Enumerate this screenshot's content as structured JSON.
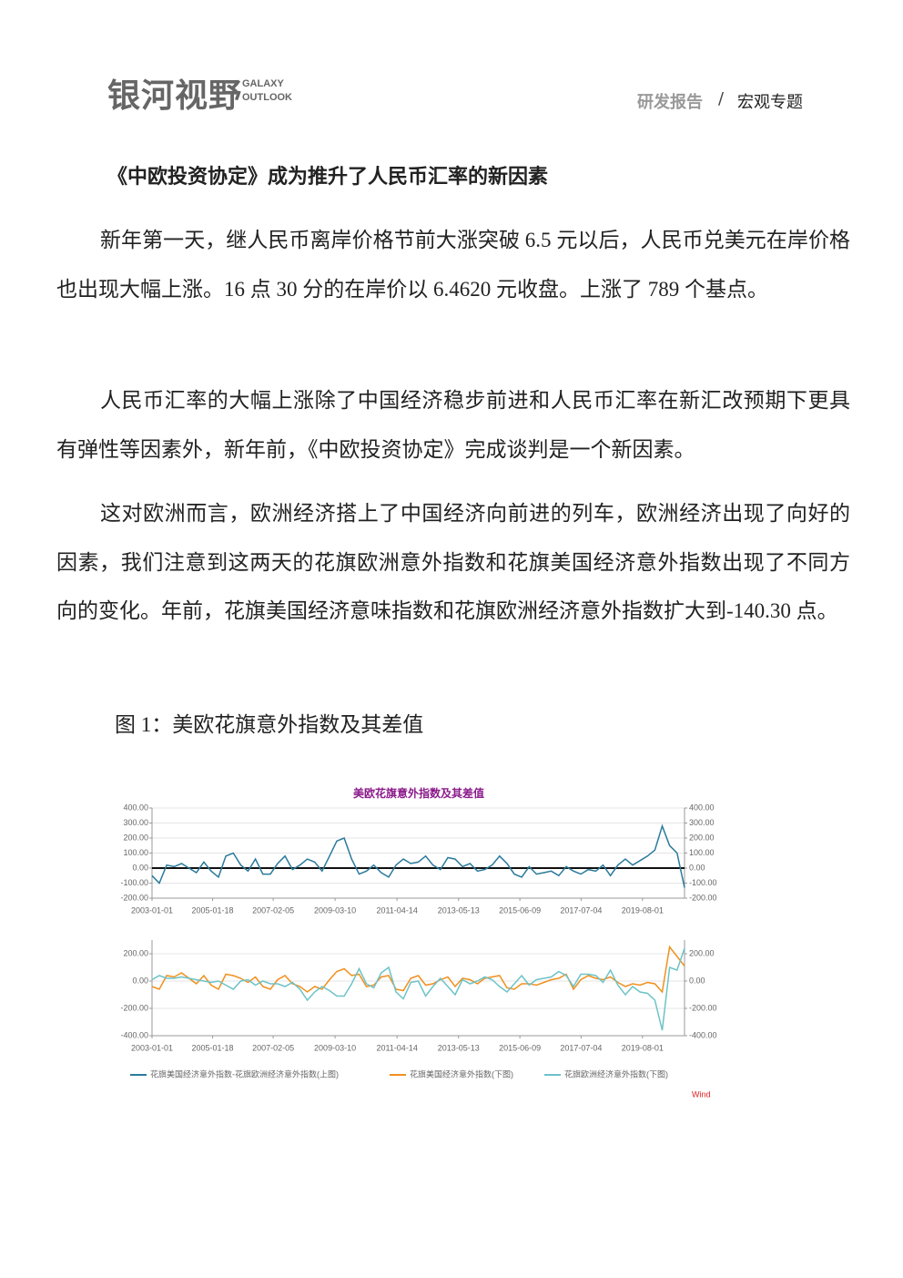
{
  "header": {
    "logo": "银河视野",
    "logo_en_1": "GALAXY",
    "logo_en_2": "OUTLOOK",
    "section": "研发报告",
    "separator": "/",
    "topic": "宏观专题"
  },
  "title": "《中欧投资协定》成为推升了人民币汇率的新因素",
  "paragraphs": [
    "新年第一天，继人民币离岸价格节前大涨突破 6.5 元以后，人民币兑美元在岸价格也出现大幅上涨。16 点 30 分的在岸价以 6.4620 元收盘。上涨了 789 个基点。",
    "人民币汇率的大幅上涨除了中国经济稳步前进和人民币汇率在新汇改预期下更具有弹性等因素外，新年前，《中欧投资协定》完成谈判是一个新因素。",
    "这对欧洲而言，欧洲经济搭上了中国经济向前进的列车，欧洲经济出现了向好的因素，我们注意到这两天的花旗欧洲意外指数和花旗美国经济意外指数出现了不同方向的变化。年前，花旗美国经济意味指数和花旗欧洲经济意外指数扩大到-140.30 点。"
  ],
  "figure": {
    "caption": "图 1：美欧花旗意外指数及其差值",
    "title": "美欧花旗意外指数及其差值",
    "source": "Wind"
  },
  "chart_data": [
    {
      "type": "line",
      "x": [
        "2003-01-01",
        "2003-04-01",
        "2003-07-01",
        "2003-10-01",
        "2004-01-01",
        "2004-04-01",
        "2004-07-01",
        "2004-10-01",
        "2005-01-01",
        "2005-04-01",
        "2005-07-01",
        "2005-10-01",
        "2006-01-01",
        "2006-04-01",
        "2006-07-01",
        "2006-10-01",
        "2007-01-01",
        "2007-04-01",
        "2007-07-01",
        "2007-10-01",
        "2008-01-01",
        "2008-04-01",
        "2008-07-01",
        "2008-10-01",
        "2009-01-01",
        "2009-04-01",
        "2009-07-01",
        "2009-10-01",
        "2010-01-01",
        "2010-04-01",
        "2010-07-01",
        "2010-10-01",
        "2011-01-01",
        "2011-04-01",
        "2011-07-01",
        "2011-10-01",
        "2012-01-01",
        "2012-04-01",
        "2012-07-01",
        "2012-10-01",
        "2013-01-01",
        "2013-04-01",
        "2013-07-01",
        "2013-10-01",
        "2014-01-01",
        "2014-04-01",
        "2014-07-01",
        "2014-10-01",
        "2015-01-01",
        "2015-04-01",
        "2015-07-01",
        "2015-10-01",
        "2016-01-01",
        "2016-04-01",
        "2016-07-01",
        "2016-10-01",
        "2017-01-01",
        "2017-04-01",
        "2017-07-01",
        "2017-10-01",
        "2018-01-01",
        "2018-04-01",
        "2018-07-01",
        "2018-10-01",
        "2019-01-01",
        "2019-04-01",
        "2019-07-01",
        "2019-10-01",
        "2020-01-01",
        "2020-04-01",
        "2020-07-01",
        "2020-10-01",
        "2021-01-01"
      ],
      "series": [
        {
          "name": "花旗美国经济意外指数-花旗欧洲经济意外指数(上图)",
          "color": "#2a7a9b",
          "values": [
            -50,
            -100,
            20,
            10,
            30,
            0,
            -30,
            40,
            -20,
            -60,
            80,
            100,
            20,
            -20,
            60,
            -40,
            -40,
            30,
            80,
            -10,
            20,
            60,
            40,
            -20,
            80,
            180,
            200,
            60,
            -40,
            -20,
            20,
            -30,
            -60,
            20,
            60,
            30,
            40,
            80,
            20,
            -10,
            70,
            60,
            10,
            30,
            -20,
            -10,
            20,
            80,
            30,
            -40,
            -60,
            10,
            -40,
            -30,
            -20,
            -50,
            10,
            -20,
            -40,
            -10,
            -20,
            20,
            -50,
            20,
            60,
            20,
            50,
            80,
            120,
            280,
            150,
            100,
            -130
          ]
        }
      ],
      "xlim": [
        "2003-01-01",
        "2021-01-01"
      ],
      "xticks": [
        "2003-01-01",
        "2005-01-18",
        "2007-02-05",
        "2009-03-10",
        "2011-04-14",
        "2013-05-13",
        "2015-06-09",
        "2017-07-04",
        "2019-08-01"
      ],
      "ylim": [
        -200,
        400
      ],
      "yticks": [
        {
          "value": -200,
          "label": "-200.00"
        },
        {
          "value": -100,
          "label": "-100.00"
        },
        {
          "value": 0,
          "label": "0.00"
        },
        {
          "value": 100,
          "label": "100.00"
        },
        {
          "value": 200,
          "label": "200.00"
        },
        {
          "value": 300,
          "label": "300.00"
        },
        {
          "value": 400,
          "label": "400.00"
        }
      ],
      "grid": true
    },
    {
      "type": "line",
      "x": [
        "2003-01-01",
        "2003-04-01",
        "2003-07-01",
        "2003-10-01",
        "2004-01-01",
        "2004-04-01",
        "2004-07-01",
        "2004-10-01",
        "2005-01-01",
        "2005-04-01",
        "2005-07-01",
        "2005-10-01",
        "2006-01-01",
        "2006-04-01",
        "2006-07-01",
        "2006-10-01",
        "2007-01-01",
        "2007-04-01",
        "2007-07-01",
        "2007-10-01",
        "2008-01-01",
        "2008-04-01",
        "2008-07-01",
        "2008-10-01",
        "2009-01-01",
        "2009-04-01",
        "2009-07-01",
        "2009-10-01",
        "2010-01-01",
        "2010-04-01",
        "2010-07-01",
        "2010-10-01",
        "2011-01-01",
        "2011-04-01",
        "2011-07-01",
        "2011-10-01",
        "2012-01-01",
        "2012-04-01",
        "2012-07-01",
        "2012-10-01",
        "2013-01-01",
        "2013-04-01",
        "2013-07-01",
        "2013-10-01",
        "2014-01-01",
        "2014-04-01",
        "2014-07-01",
        "2014-10-01",
        "2015-01-01",
        "2015-04-01",
        "2015-07-01",
        "2015-10-01",
        "2016-01-01",
        "2016-04-01",
        "2016-07-01",
        "2016-10-01",
        "2017-01-01",
        "2017-04-01",
        "2017-07-01",
        "2017-10-01",
        "2018-01-01",
        "2018-04-01",
        "2018-07-01",
        "2018-10-01",
        "2019-01-01",
        "2019-04-01",
        "2019-07-01",
        "2019-10-01",
        "2020-01-01",
        "2020-04-01",
        "2020-07-01",
        "2020-10-01",
        "2021-01-01"
      ],
      "series": [
        {
          "name": "花旗美国经济意外指数(下图)",
          "color": "#f0901e",
          "values": [
            -40,
            -60,
            40,
            30,
            60,
            20,
            -20,
            40,
            -30,
            -60,
            50,
            40,
            20,
            -10,
            30,
            -40,
            -60,
            10,
            40,
            -20,
            -40,
            -80,
            -40,
            -60,
            10,
            70,
            90,
            40,
            50,
            -40,
            -30,
            30,
            40,
            -60,
            -70,
            20,
            40,
            -30,
            -20,
            10,
            30,
            -40,
            20,
            10,
            -20,
            20,
            30,
            40,
            -50,
            -60,
            -20,
            -20,
            -30,
            -10,
            10,
            20,
            50,
            -60,
            10,
            40,
            20,
            10,
            30,
            -10,
            -40,
            -20,
            -30,
            -10,
            -20,
            -80,
            250,
            180,
            110
          ]
        },
        {
          "name": "花旗欧洲经济意外指数(下图)",
          "color": "#6cc3c8",
          "values": [
            10,
            40,
            20,
            20,
            30,
            20,
            10,
            0,
            -10,
            0,
            -30,
            -60,
            0,
            10,
            -30,
            0,
            -20,
            -20,
            -40,
            -10,
            -60,
            -140,
            -80,
            -40,
            -70,
            -110,
            -110,
            -20,
            90,
            -20,
            -50,
            60,
            100,
            -80,
            -130,
            -10,
            0,
            -110,
            -40,
            20,
            -40,
            -100,
            10,
            -20,
            0,
            30,
            10,
            -40,
            -80,
            -20,
            40,
            -30,
            10,
            20,
            30,
            70,
            40,
            -40,
            50,
            50,
            40,
            -10,
            80,
            -30,
            -100,
            -40,
            -80,
            -90,
            -140,
            -360,
            100,
            80,
            240
          ]
        }
      ],
      "xlim": [
        "2003-01-01",
        "2021-01-01"
      ],
      "xticks": [
        "2003-01-01",
        "2005-01-18",
        "2007-02-05",
        "2009-03-10",
        "2011-04-14",
        "2013-05-13",
        "2015-06-09",
        "2017-07-04",
        "2019-08-01"
      ],
      "ylim": [
        -400,
        300
      ],
      "yticks": [
        {
          "value": -400,
          "label": "-400.00"
        },
        {
          "value": -200,
          "label": "-200.00"
        },
        {
          "value": 0,
          "label": "0.00"
        },
        {
          "value": 200,
          "label": "200.00"
        }
      ],
      "grid": true
    }
  ]
}
